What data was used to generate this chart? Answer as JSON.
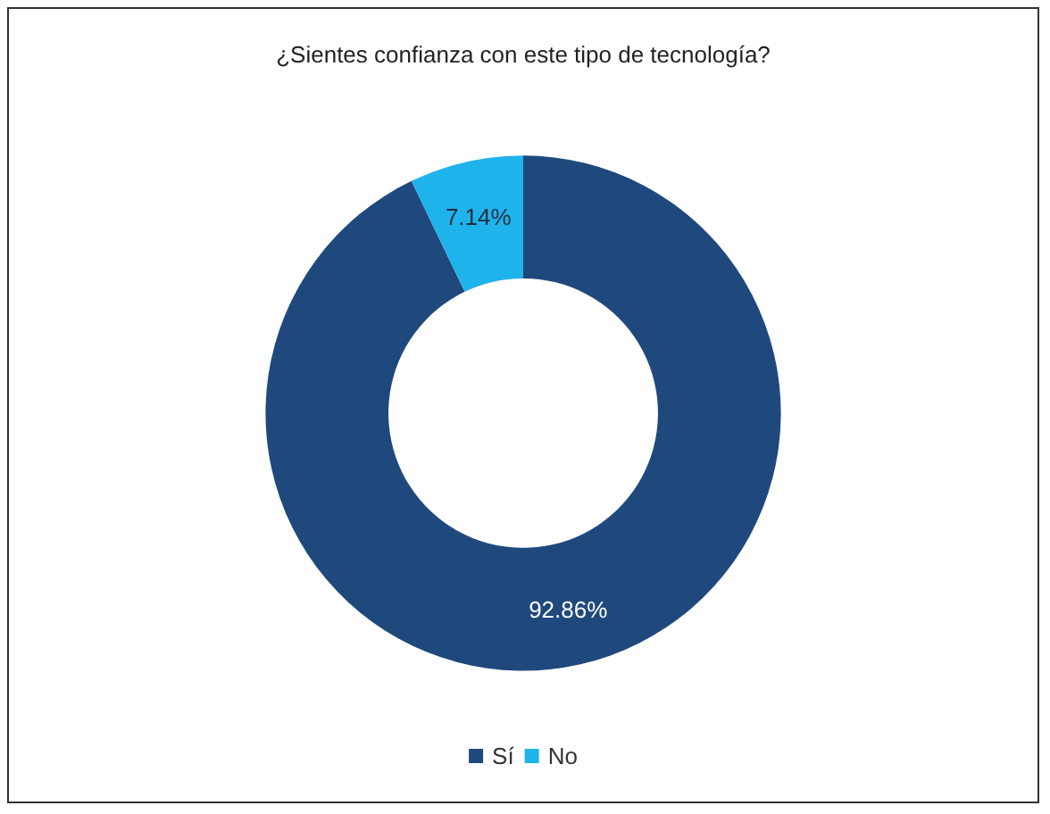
{
  "chart_data": {
    "type": "donut",
    "title": "¿Sientes confianza con este tipo de tecnología?",
    "categories": [
      "Sí",
      "No"
    ],
    "values": [
      92.86,
      7.14
    ],
    "colors": [
      "#1f497d",
      "#1fb3ec"
    ],
    "value_labels": [
      "92.86%",
      "7.14%"
    ],
    "legend": "bottom"
  }
}
